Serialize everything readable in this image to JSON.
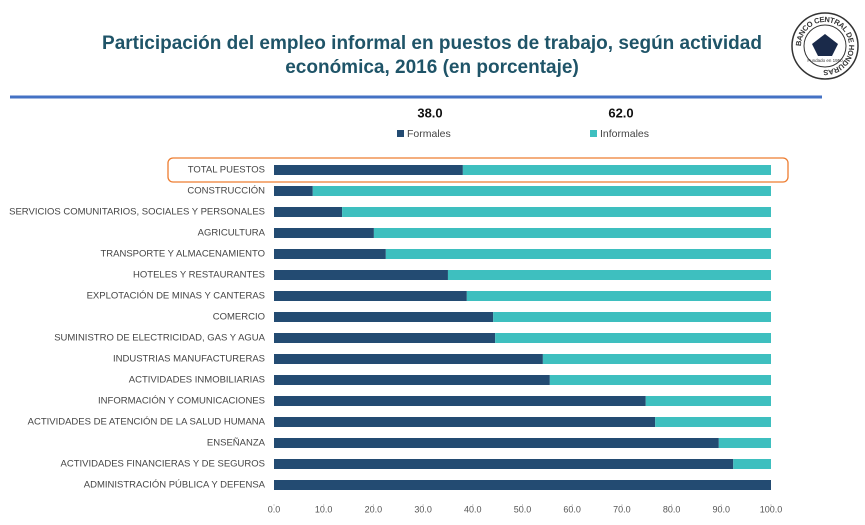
{
  "chart_data": {
    "type": "stacked_barh",
    "title": [
      "Participación del empleo informal en puestos de trabajo, según actividad",
      "económica, 2016 (en porcentaje)"
    ],
    "logo": {
      "name": "BANCO CENTRAL DE HONDURAS",
      "founded": "Fundado en 1950"
    },
    "annotations": [
      "38.0",
      "62.0"
    ],
    "categories": [
      "TOTAL PUESTOS",
      "CONSTRUCCIÓN",
      "SERVICIOS COMUNITARIOS, SOCIALES Y PERSONALES",
      "AGRICULTURA",
      "TRANSPORTE Y ALMACENAMIENTO",
      "HOTELES Y RESTAURANTES",
      "EXPLOTACIÓN DE MINAS Y CANTERAS",
      "COMERCIO",
      "SUMINISTRO DE ELECTRICIDAD, GAS Y AGUA",
      "INDUSTRIAS MANUFACTURERAS",
      "ACTIVIDADES INMOBILIARIAS",
      "INFORMACIÓN Y COMUNICACIONES",
      "ACTIVIDADES DE ATENCIÓN DE LA SALUD HUMANA",
      "ENSEÑANZA",
      "ACTIVIDADES FINANCIERAS Y DE SEGUROS",
      "ADMINISTRACIÓN PÚBLICA Y DEFENSA"
    ],
    "series": [
      {
        "name": "Formales",
        "color": "#234b72",
        "values": [
          38.0,
          7.8,
          13.7,
          20.1,
          22.5,
          35.0,
          38.8,
          44.1,
          44.5,
          54.1,
          55.5,
          74.8,
          76.7,
          89.5,
          92.4,
          100
        ]
      },
      {
        "name": "Informales",
        "color": "#3ebfbf",
        "values": [
          62.0,
          92.2,
          86.3,
          79.9,
          77.5,
          65.0,
          61.2,
          55.9,
          55.5,
          45.9,
          44.5,
          25.2,
          23.3,
          10.5,
          7.6,
          0
        ]
      }
    ],
    "xlim": [
      0,
      100
    ],
    "xticks": [
      {
        "value": 0,
        "label": "0.0"
      },
      {
        "value": 10,
        "label": "10.0"
      },
      {
        "value": 20,
        "label": "20.0"
      },
      {
        "value": 30,
        "label": "30.0"
      },
      {
        "value": 40,
        "label": "40.0"
      },
      {
        "value": 50,
        "label": "50.0"
      },
      {
        "value": 60,
        "label": "60.0"
      },
      {
        "value": 70,
        "label": "70.0"
      },
      {
        "value": 80,
        "label": "80.0"
      },
      {
        "value": 90,
        "label": "90.0"
      },
      {
        "value": 100,
        "label": "100.0"
      }
    ],
    "highlight_color": "#ed7d31"
  }
}
